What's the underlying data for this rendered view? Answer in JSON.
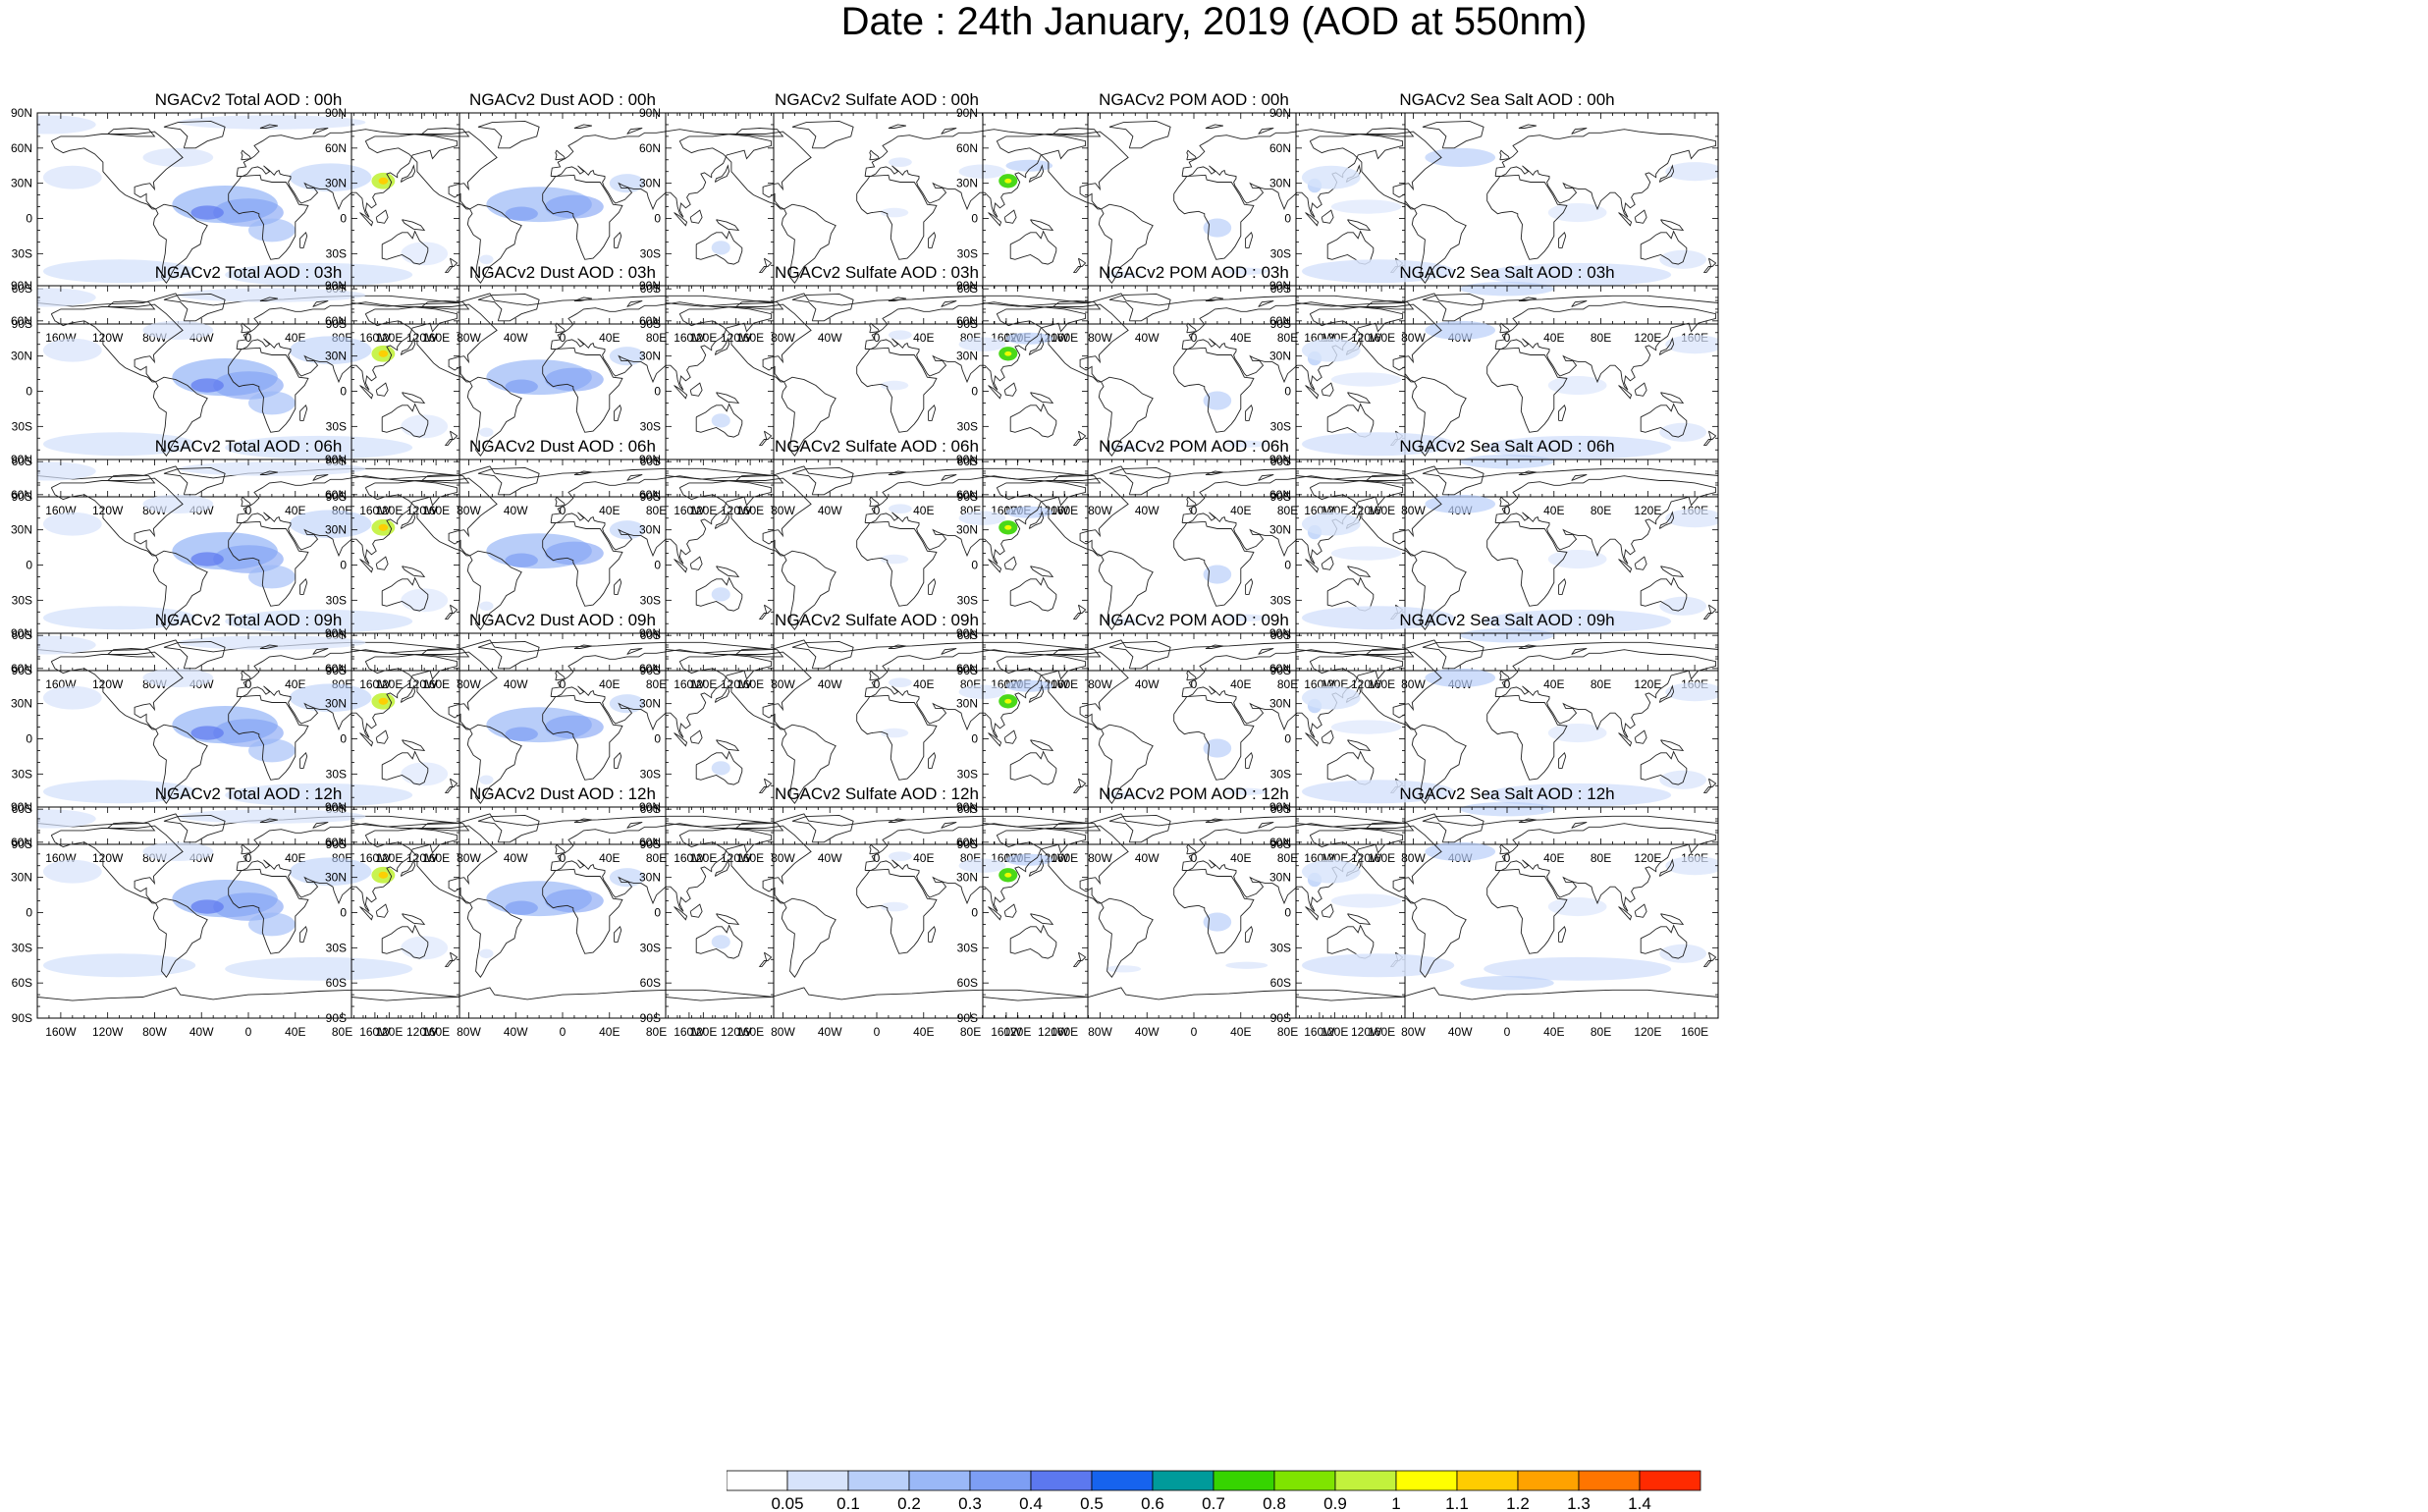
{
  "title": "Date : 24th January, 2019 (AOD at 550nm)",
  "panels": [
    [
      "NGACv2 Total AOD : 00h",
      "NGACv2 Dust AOD : 00h",
      "NGACv2 Sulfate AOD : 00h",
      "NGACv2 POM AOD : 00h",
      "NGACv2 Sea Salt AOD : 00h"
    ],
    [
      "NGACv2 Total AOD : 03h",
      "NGACv2 Dust AOD : 03h",
      "NGACv2 Sulfate AOD : 03h",
      "NGACv2 POM AOD : 03h",
      "NGACv2 Sea Salt AOD : 03h"
    ],
    [
      "NGACv2 Total AOD : 06h",
      "NGACv2 Dust AOD : 06h",
      "NGACv2 Sulfate AOD : 06h",
      "NGACv2 POM AOD : 06h",
      "NGACv2 Sea Salt AOD : 06h"
    ],
    [
      "NGACv2 Total AOD : 09h",
      "NGACv2 Dust AOD : 09h",
      "NGACv2 Sulfate AOD : 09h",
      "NGACv2 POM AOD : 09h",
      "NGACv2 Sea Salt  AOD : 09h"
    ],
    [
      "NGACv2 Total AOD  : 12h",
      "NGACv2 Dust AOD : 12h",
      "NGACv2 Sulfate AOD : 12h",
      "NGACv2 POM  AOD : 12h",
      "NGACv2 Sea Salt  AOD : 12h"
    ]
  ],
  "lat_labels": [
    "90N",
    "60N",
    "30N",
    "0",
    "30S",
    "60S",
    "90S"
  ],
  "lon_labels": [
    "160W",
    "120W",
    "80W",
    "40W",
    "0",
    "40E",
    "80E",
    "120E",
    "160E"
  ],
  "colorbar": {
    "levels": [
      "0.05",
      "0.1",
      "0.2",
      "0.3",
      "0.4",
      "0.5",
      "0.6",
      "0.7",
      "0.8",
      "0.9",
      "1",
      "1.1",
      "1.2",
      "1.3",
      "1.4"
    ],
    "colors": [
      "#ffffff",
      "#d7e3fb",
      "#b9cff9",
      "#9ab8f7",
      "#7d9ef4",
      "#5c78ef",
      "#1663ee",
      "#009b9b",
      "#36d400",
      "#7fe400",
      "#c2f23c",
      "#ffff00",
      "#ffcc00",
      "#ffa200",
      "#ff7500",
      "#ff2a00"
    ]
  },
  "panel_types": [
    "total",
    "dust",
    "sulfate",
    "pom",
    "seasalt"
  ]
}
